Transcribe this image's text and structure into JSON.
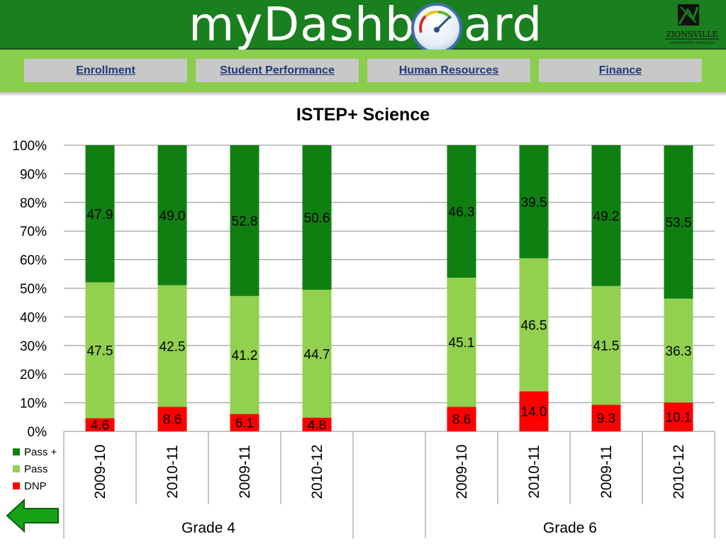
{
  "header": {
    "logo_left": "myDashb",
    "logo_right": "ard",
    "district_name": "ZIONSVILLE",
    "district_sub": "COMMUNITY SCHOOLS"
  },
  "nav": [
    {
      "label": "Enrollment"
    },
    {
      "label": "Student Performance"
    },
    {
      "label": "Human Resources"
    },
    {
      "label": "Finance"
    }
  ],
  "colors": {
    "header_green": "#1a7f1f",
    "nav_green": "#8bcd4c",
    "pass_plus": "#0f7f12",
    "pass": "#92d050",
    "dnp": "#ff0000"
  },
  "chart_data": {
    "type": "bar",
    "stacked": true,
    "title": "ISTEP+ Science",
    "ylim": [
      0,
      100
    ],
    "yticks": [
      "0%",
      "10%",
      "20%",
      "30%",
      "40%",
      "50%",
      "60%",
      "70%",
      "80%",
      "90%",
      "100%"
    ],
    "grid": true,
    "legend_position": "bottom-left",
    "groups": [
      {
        "name": "Grade 4",
        "categories": [
          "2009-10",
          "2010-11",
          "2009-11",
          "2010-12"
        ]
      },
      {
        "name": "Grade 6",
        "categories": [
          "2009-10",
          "2010-11",
          "2009-11",
          "2010-12"
        ]
      }
    ],
    "series": [
      {
        "name": "Pass +",
        "color": "#0f7f12",
        "values": [
          47.9,
          49.0,
          52.8,
          50.6,
          46.3,
          39.5,
          49.2,
          53.5
        ],
        "labels": [
          "47.9",
          "49.0",
          "52.8",
          "50.6",
          "46.3",
          "39.5",
          "49.2",
          "53.5"
        ]
      },
      {
        "name": "Pass",
        "color": "#92d050",
        "values": [
          47.5,
          42.5,
          41.2,
          44.7,
          45.1,
          46.5,
          41.5,
          36.3
        ],
        "labels": [
          "47.5",
          "42.5",
          "41.2",
          "44.7",
          "45.1",
          "46.5",
          "41.5",
          "36.3"
        ]
      },
      {
        "name": "DNP",
        "color": "#ff0000",
        "values": [
          4.6,
          8.6,
          6.1,
          4.8,
          8.6,
          14.0,
          9.3,
          10.1
        ],
        "labels": [
          "4.6",
          "8.6",
          "6.1",
          "4.8",
          "8.6",
          "14.0",
          "9.3",
          "10.1"
        ]
      }
    ]
  }
}
